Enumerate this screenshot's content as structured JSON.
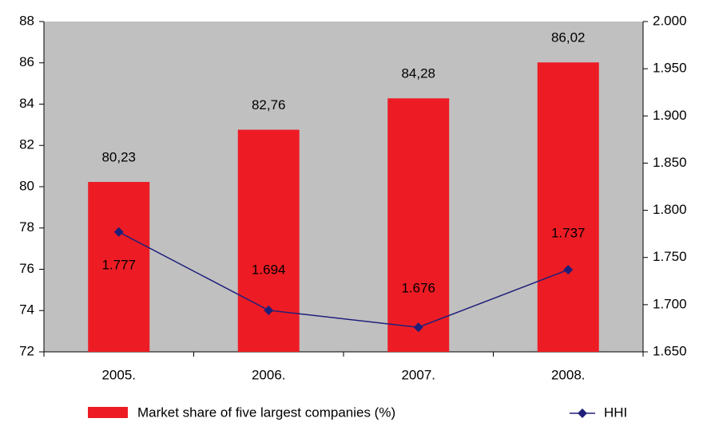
{
  "chart_data": {
    "type": "bar",
    "categories": [
      "2005.",
      "2006.",
      "2007.",
      "2008."
    ],
    "series": [
      {
        "name": "Market share of five largest companies (%)",
        "color": "#ed1c24",
        "type": "bar",
        "values": [
          80.23,
          82.76,
          84.28,
          86.02
        ],
        "value_labels": [
          "80,23",
          "82,76",
          "84,28",
          "86,02"
        ]
      },
      {
        "name": "HHI",
        "color": "#1f1f7a",
        "type": "line",
        "axis": "y2",
        "values": [
          1777,
          1694,
          1676,
          1737
        ],
        "value_labels": [
          "1.777",
          "1.694",
          "1.676",
          "1.737"
        ]
      }
    ],
    "ylim": [
      72,
      88
    ],
    "yticks": [
      72,
      74,
      76,
      78,
      80,
      82,
      84,
      86,
      88
    ],
    "y2lim": [
      1650,
      2000
    ],
    "y2ticks": [
      {
        "value": 1650,
        "label": "1.650"
      },
      {
        "value": 1700,
        "label": "1.700"
      },
      {
        "value": 1750,
        "label": "1.750"
      },
      {
        "value": 1800,
        "label": "1.800"
      },
      {
        "value": 1850,
        "label": "1.850"
      },
      {
        "value": 1900,
        "label": "1.900"
      },
      {
        "value": 1950,
        "label": "1.950"
      },
      {
        "value": 2000,
        "label": "2.000"
      }
    ],
    "plot_background": "#c0c0c0",
    "legend": "bottom"
  }
}
